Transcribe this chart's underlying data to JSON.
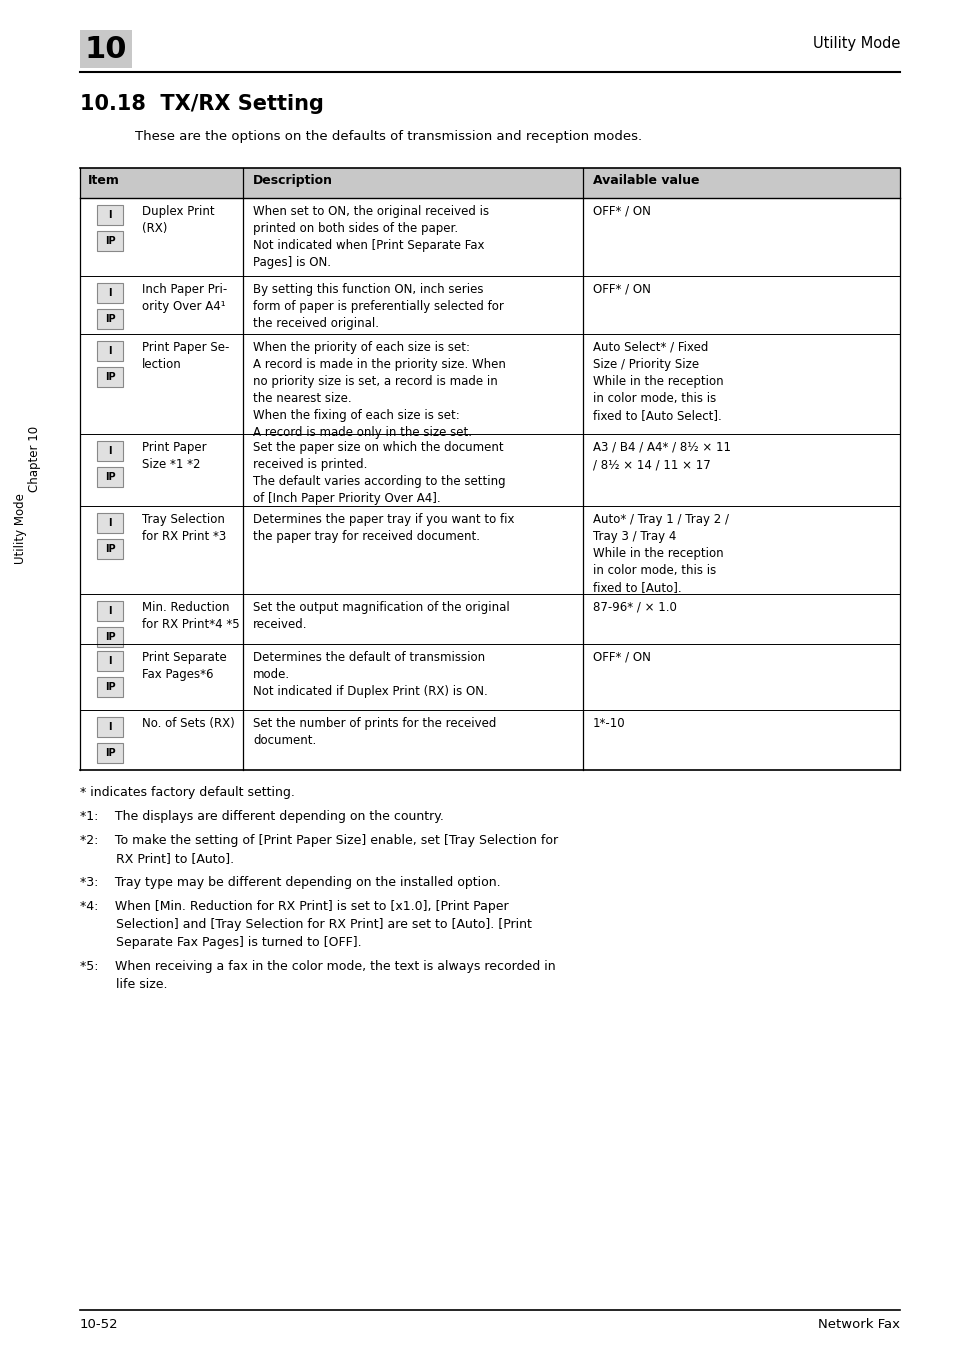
{
  "page_num_left": "10-52",
  "page_num_right": "Network Fax",
  "chapter_num": "10",
  "chapter_label": "Utility Mode",
  "section_title": "10.18  TX/RX Setting",
  "section_intro": "These are the options on the defaults of transmission and reception modes.",
  "col_headers": [
    "Item",
    "Description",
    "Available value"
  ],
  "rows": [
    {
      "item": "Duplex Print\n(RX)",
      "description": "When set to ON, the original received is\nprinted on both sides of the paper.\nNot indicated when [Print Separate Fax\nPages] is ON.",
      "value": "OFF* / ON"
    },
    {
      "item": "Inch Paper Pri-\nority Over A4¹",
      "description": "By setting this function ON, inch series\nform of paper is preferentially selected for\nthe received original.",
      "value": "OFF* / ON"
    },
    {
      "item": "Print Paper Se-\nlection",
      "description": "When the priority of each size is set:\nA record is made in the priority size. When\nno priority size is set, a record is made in\nthe nearest size.\nWhen the fixing of each size is set:\nA record is made only in the size set.",
      "value": "Auto Select* / Fixed\nSize / Priority Size\nWhile in the reception\nin color mode, this is\nfixed to [Auto Select]."
    },
    {
      "item": "Print Paper\nSize *1 *2",
      "description": "Set the paper size on which the document\nreceived is printed.\nThe default varies according to the setting\nof [Inch Paper Priority Over A4].",
      "value": "A3 / B4 / A4* / 8½ × 11\n/ 8½ × 14 / 11 × 17"
    },
    {
      "item": "Tray Selection\nfor RX Print *3",
      "description": "Determines the paper tray if you want to fix\nthe paper tray for received document.",
      "value": "Auto* / Tray 1 / Tray 2 /\nTray 3 / Tray 4\nWhile in the reception\nin color mode, this is\nfixed to [Auto]."
    },
    {
      "item": "Min. Reduction\nfor RX Print*4 *5",
      "description": "Set the output magnification of the original\nreceived.",
      "value": "87-96* / × 1.0"
    },
    {
      "item": "Print Separate\nFax Pages*6",
      "description": "Determines the default of transmission\nmode.\nNot indicated if Duplex Print (RX) is ON.",
      "value": "OFF* / ON"
    },
    {
      "item": "No. of Sets (RX)",
      "description": "Set the number of prints for the received\ndocument.",
      "value": "1*-10"
    }
  ],
  "footnotes": [
    {
      "text": "* indicates factory default setting.",
      "indent": false
    },
    {
      "text": "*1:  The displays are different depending on the country.",
      "indent": false
    },
    {
      "text": "*2:  To make the setting of [Print Paper Size] enable, set [Tray Selection for\n         RX Print] to [Auto].",
      "indent": false
    },
    {
      "text": "*3:  Tray type may be different depending on the installed option.",
      "indent": false
    },
    {
      "text": "*4:  When [Min. Reduction for RX Print] is set to [x1.0], [Print Paper\n         Selection] and [Tray Selection for RX Print] are set to [Auto]. [Print\n         Separate Fax Pages] is turned to [OFF].",
      "indent": false
    },
    {
      "text": "*5:  When receiving a fax in the color mode, the text is always recorded in\n         life size.",
      "indent": false
    }
  ],
  "bg_color": "#ffffff",
  "header_bg": "#c8c8c8",
  "icon_bg": "#e0e0e0",
  "icon_border": "#888888",
  "table_border": "#000000",
  "sidebar_chapter": "Chapter 10",
  "sidebar_mode": "Utility Mode"
}
